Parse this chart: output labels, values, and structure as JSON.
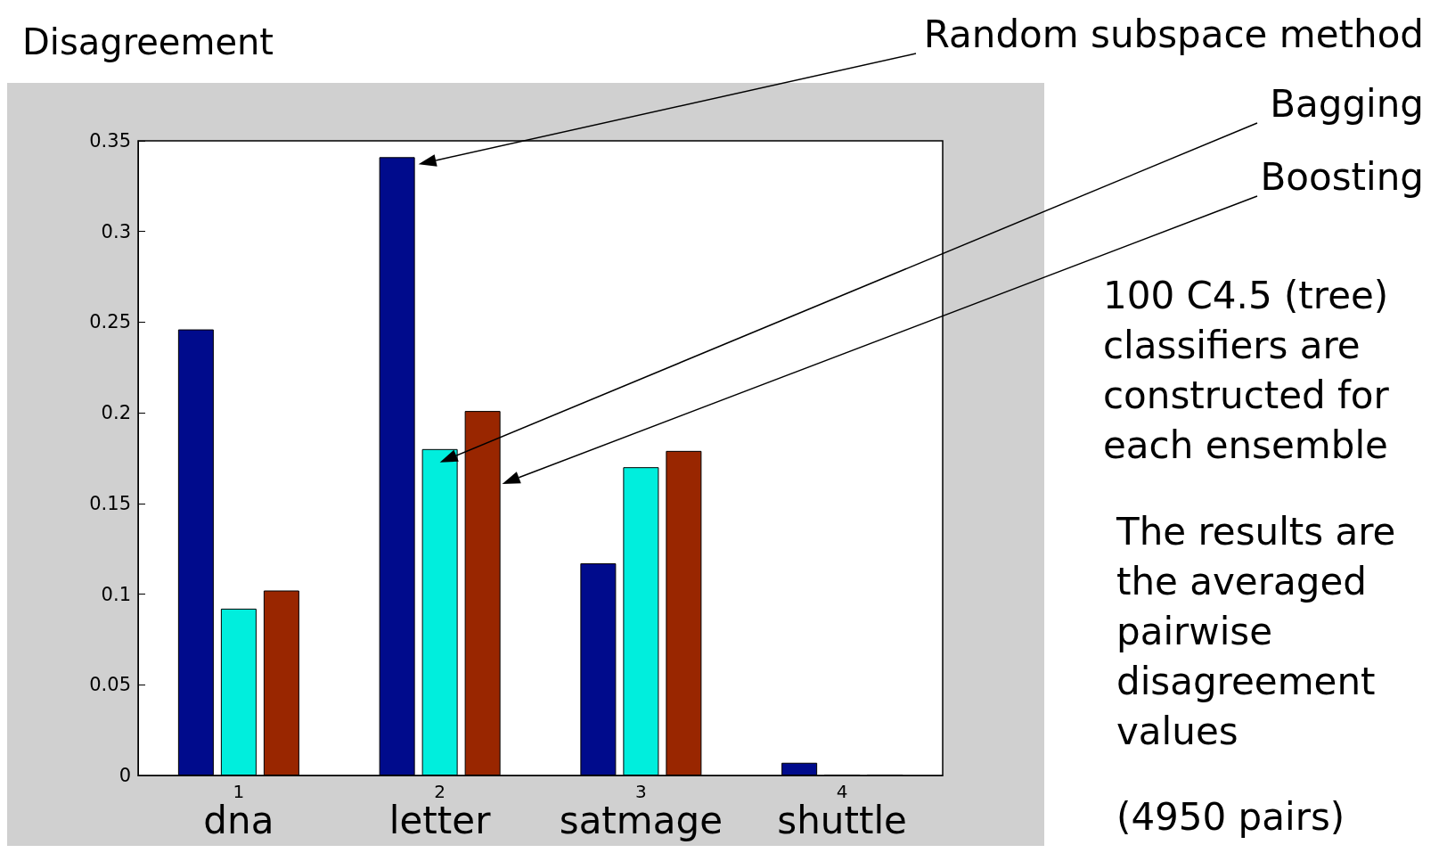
{
  "chart_data": {
    "type": "bar",
    "title": "Disagreement",
    "categories": [
      "1",
      "2",
      "3",
      "4"
    ],
    "series": [
      {
        "name": "Random subspace method",
        "color": "#000b8c",
        "values": [
          0.246,
          0.341,
          0.117,
          0.007
        ]
      },
      {
        "name": "Bagging",
        "color": "#00eedd",
        "values": [
          0.092,
          0.18,
          0.17,
          0
        ]
      },
      {
        "name": "Boosting",
        "color": "#992600",
        "values": [
          0.102,
          0.201,
          0.179,
          0
        ]
      }
    ],
    "ylim": [
      0,
      0.35
    ],
    "yticks": [
      0,
      0.05,
      0.1,
      0.15,
      0.2,
      0.25,
      0.3,
      0.35
    ],
    "grid": false,
    "legend": false,
    "annotations": [
      "dna",
      "letter",
      "satmage",
      "shuttle",
      "100 C4.5 (tree) classifiers are constructed for each ensemble",
      "The results are the averaged pairwise disagreement values",
      "(4950 pairs)"
    ]
  }
}
